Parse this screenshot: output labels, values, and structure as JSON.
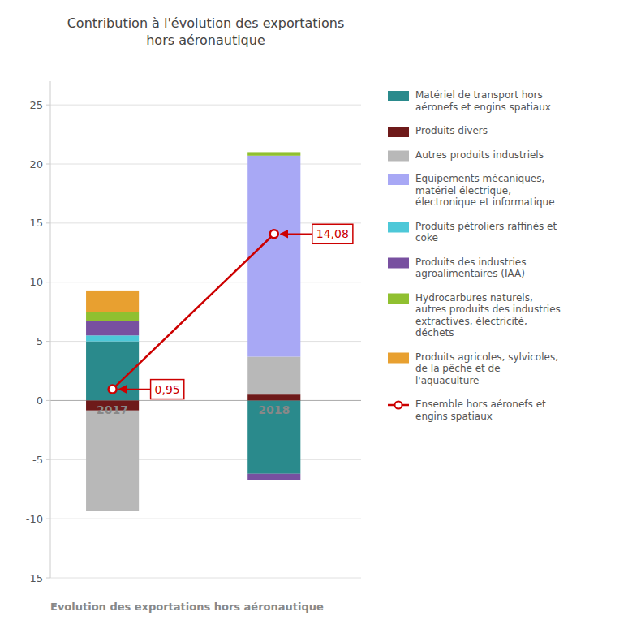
{
  "chart_data": {
    "type": "bar",
    "stacked": true,
    "title": "Contribution à l'évolution des exportations\nhors aéronautique",
    "subtitle": "Evolution des exportations hors aéronautique",
    "categories": [
      "2017",
      "2018"
    ],
    "series": [
      {
        "name": "Matériel de transport hors\naéronefs et engins spatiaux",
        "color": "#2a8a8c",
        "values": [
          5.0,
          -6.2
        ]
      },
      {
        "name": "Produits divers",
        "color": "#6e1a1a",
        "values": [
          -0.85,
          0.5
        ]
      },
      {
        "name": "Autres produits industriels",
        "color": "#b8b8b8",
        "values": [
          -8.5,
          3.2
        ]
      },
      {
        "name": "Equipements mécaniques,\nmatériel électrique,\nélectronique et informatique",
        "color": "#a8a8f5",
        "values": [
          0.0,
          17.0
        ]
      },
      {
        "name": "Produits pétroliers raffinés et\ncoke",
        "color": "#4dc8d8",
        "values": [
          0.5,
          0.0
        ]
      },
      {
        "name": "Produits des industries\nagroalimentaires (IAA)",
        "color": "#7850a0",
        "values": [
          1.2,
          -0.5
        ]
      },
      {
        "name": "Hydrocarbures naturels,\nautres produits des industries\nextractives, électricité,\ndéchets",
        "color": "#90c030",
        "values": [
          0.8,
          0.3
        ]
      },
      {
        "name": "Produits agricoles, sylvicoles,\nde la pêche et de\nl'aquaculture",
        "color": "#e8a030",
        "values": [
          1.8,
          0.0
        ]
      },
      {
        "name": "Ensemble hors aéronefs et\nengins spatiaux",
        "type": "line",
        "color": "#cc0000",
        "marker": "circle",
        "data_labels": true,
        "values": [
          0.95,
          14.08
        ],
        "value_labels": [
          "0,95",
          "14,08"
        ]
      }
    ],
    "ylim": [
      -15,
      27
    ],
    "yticks": [
      -15,
      -10,
      -5,
      0,
      5,
      10,
      15,
      20,
      25
    ],
    "grid": true,
    "legend": "right",
    "tick_labels": "y"
  }
}
